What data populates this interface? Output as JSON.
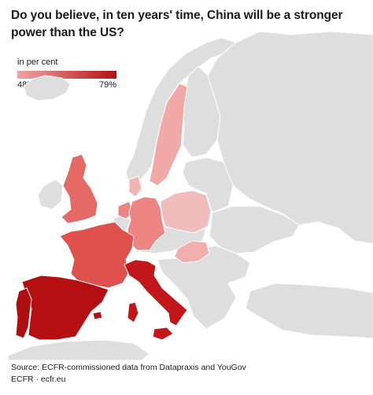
{
  "title": "Do you believe, in ten years' time, China will be a stronger power than the US?",
  "legend": {
    "label": "in per cent",
    "min": "48%",
    "max": "79%",
    "min_color": "#f0a5a5",
    "max_color": "#b70f12"
  },
  "colors": {
    "no_data": "#dedede",
    "sea": "#ffffff",
    "border": "#ffffff"
  },
  "map_regions": [
    {
      "name": "Spain",
      "shade": 0.95,
      "fill": "#b60f12"
    },
    {
      "name": "Portugal",
      "shade": 1.0,
      "fill": "#b00d10"
    },
    {
      "name": "Italy",
      "shade": 0.85,
      "fill": "#c3161a"
    },
    {
      "name": "France",
      "shade": 0.6,
      "fill": "#e0504c"
    },
    {
      "name": "United Kingdom",
      "shade": 0.45,
      "fill": "#e56a66"
    },
    {
      "name": "Germany",
      "shade": 0.35,
      "fill": "#ec8581"
    },
    {
      "name": "Netherlands",
      "shade": 0.35,
      "fill": "#ec8581"
    },
    {
      "name": "Denmark",
      "shade": 0.1,
      "fill": "#f2b3b1"
    },
    {
      "name": "Sweden",
      "shade": 0.15,
      "fill": "#f1a9a7"
    },
    {
      "name": "Poland",
      "shade": 0.05,
      "fill": "#f1bcbc"
    },
    {
      "name": "Hungary",
      "shade": 0.15,
      "fill": "#f1aeac"
    }
  ],
  "source": "Source: ECFR-commissioned data from Datapraxis and YouGov",
  "credit": "ECFR · ecfr.eu"
}
